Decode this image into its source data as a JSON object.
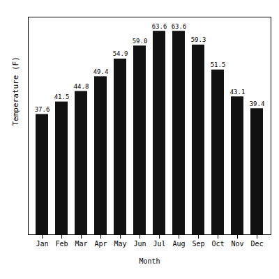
{
  "chart_data": {
    "type": "bar",
    "categories": [
      "Jan",
      "Feb",
      "Mar",
      "Apr",
      "May",
      "Jun",
      "Jul",
      "Aug",
      "Sep",
      "Oct",
      "Nov",
      "Dec"
    ],
    "values": [
      37.6,
      41.5,
      44.8,
      49.4,
      54.9,
      59.0,
      63.6,
      63.6,
      59.3,
      51.5,
      43.1,
      39.4
    ],
    "value_labels": [
      "37.6",
      "41.5",
      "44.8",
      "49.4",
      "54.9",
      "59.0",
      "63.6",
      "63.6",
      "59.3",
      "51.5",
      "43.1",
      "39.4"
    ],
    "color": "#111111",
    "xlabel": "Month",
    "ylabel": "Temperature (F)",
    "ylim": [
      0,
      68
    ],
    "tick_labels": "x",
    "data_labels": true,
    "grid": false
  }
}
